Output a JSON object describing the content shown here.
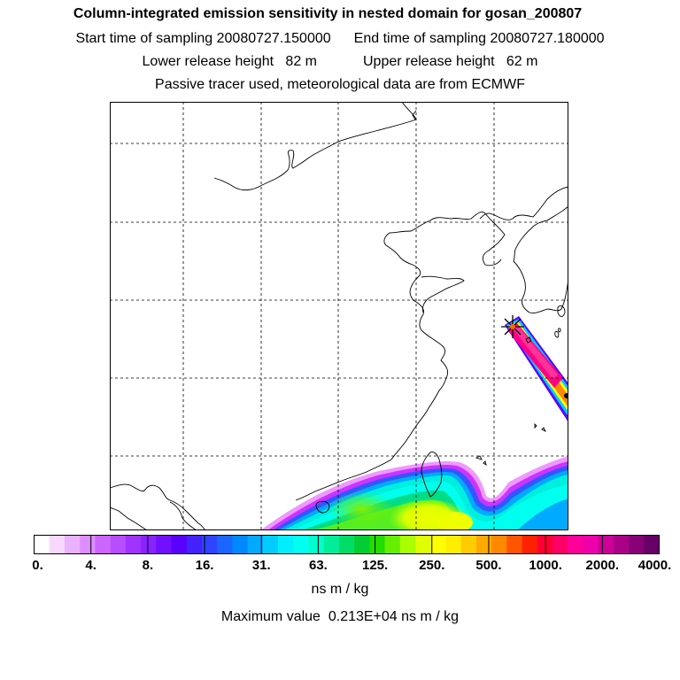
{
  "title": {
    "main": "Column-integrated emission sensitivity in nested domain for gosan_200807",
    "start_label": "Start time of sampling",
    "start_value": "20080727.150000",
    "end_label": "End time of sampling",
    "end_value": "20080727.180000",
    "lower_label": "Lower release height",
    "lower_value": "82 m",
    "upper_label": "Upper release height",
    "upper_value": "62 m",
    "tracer_note": "Passive tracer used, meteorological data are from ECMWF"
  },
  "colorbar": {
    "tick_labels": [
      "0.",
      "4.",
      "8.",
      "16.",
      "31.",
      "63.",
      "125.",
      "250.",
      "500.",
      "1000.",
      "2000.",
      "4000."
    ],
    "units": "ns m / kg",
    "colors": [
      "#ffffff",
      "#f7d8ff",
      "#eab2ff",
      "#de8dff",
      "#cc66ff",
      "#b84dff",
      "#a033ff",
      "#8822ff",
      "#7010ff",
      "#5a00ff",
      "#4422ff",
      "#2e44ff",
      "#1a66ff",
      "#0088ff",
      "#00aaff",
      "#00ccff",
      "#00eeff",
      "#00ffee",
      "#00ffcc",
      "#00ee99",
      "#00dd66",
      "#00cc33",
      "#22dd00",
      "#66ee00",
      "#aaff00",
      "#ddff00",
      "#ffff00",
      "#ffee00",
      "#ffcc00",
      "#ffaa00",
      "#ff8800",
      "#ff5500",
      "#ff2200",
      "#ff0033",
      "#ff0066",
      "#ff0099",
      "#ee00aa",
      "#cc0099",
      "#aa0088",
      "#880077",
      "#660066"
    ]
  },
  "max_value": {
    "label": "Maximum value",
    "value": "0.213E+04",
    "units": "ns m / kg"
  },
  "receptor": {
    "name": "gosan"
  }
}
